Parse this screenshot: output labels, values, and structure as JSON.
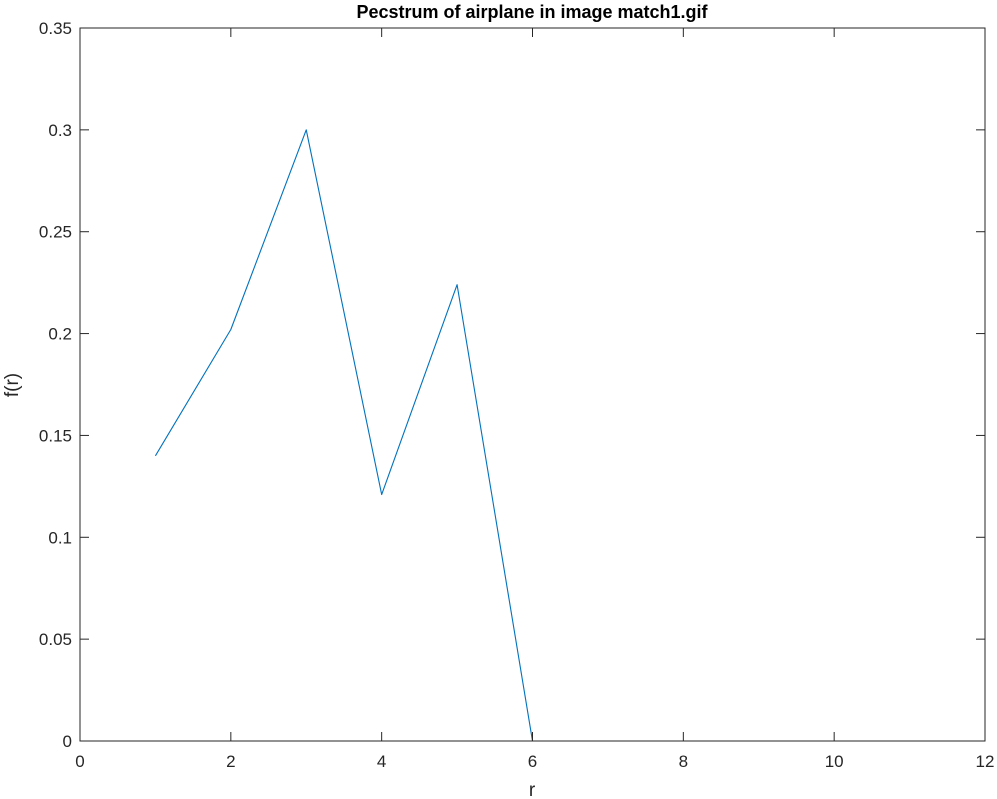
{
  "chart_data": {
    "type": "line",
    "title": "Pecstrum of airplane in image match1.gif",
    "xlabel": "r",
    "ylabel": "f(r)",
    "xlim": [
      0,
      12
    ],
    "ylim": [
      0,
      0.35
    ],
    "xticks": [
      0,
      2,
      4,
      6,
      8,
      10,
      12
    ],
    "xtick_labels": [
      "0",
      "2",
      "4",
      "6",
      "8",
      "10",
      "12"
    ],
    "yticks": [
      0,
      0.05,
      0.1,
      0.15,
      0.2,
      0.25,
      0.3,
      0.35
    ],
    "ytick_labels": [
      "0",
      "0.05",
      "0.1",
      "0.15",
      "0.2",
      "0.25",
      "0.3",
      "0.35"
    ],
    "grid": false,
    "box": true,
    "series": [
      {
        "color": "#0072BD",
        "x": [
          1,
          2,
          3,
          4,
          5,
          6,
          7,
          8,
          9,
          10,
          11,
          12
        ],
        "y": [
          0.14,
          0.202,
          0.3,
          0.121,
          0.224,
          0,
          0,
          0,
          0,
          0,
          0,
          0
        ]
      }
    ]
  }
}
